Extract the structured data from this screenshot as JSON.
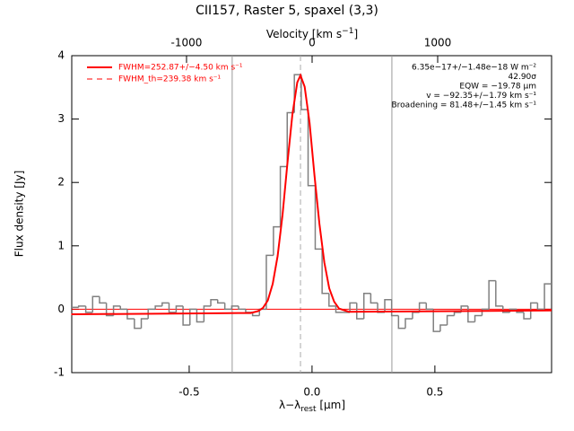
{
  "chart_data": {
    "type": "spectrum",
    "title": "CII157, Raster 5, spaxel (3,3)",
    "xlabel": [
      "λ−λ",
      "rest",
      " [μm]"
    ],
    "ylabel": "Flux density [Jy]",
    "x2label": [
      "Velocity [km s",
      "−1",
      "]"
    ],
    "xlim": [
      -0.978,
      0.975
    ],
    "ylim": [
      -1,
      4
    ],
    "x2lim": [
      -1914,
      1907
    ],
    "xticks": [
      -0.5,
      {
        "value": 0,
        "label": "0.0"
      },
      0.5
    ],
    "yticks": [
      -1,
      0,
      1,
      2,
      3,
      4
    ],
    "x2ticks": [
      -1000,
      0,
      1000
    ],
    "series": [
      {
        "type": "histogram",
        "color": "#808080",
        "bins": [
          -0.978,
          -0.95,
          -0.921,
          -0.893,
          -0.865,
          -0.837,
          -0.808,
          -0.78,
          -0.752,
          -0.723,
          -0.695,
          -0.667,
          -0.638,
          -0.61,
          -0.582,
          -0.553,
          -0.525,
          -0.497,
          -0.469,
          -0.44,
          -0.412,
          -0.384,
          -0.355,
          -0.327,
          -0.299,
          -0.27,
          -0.242,
          -0.214,
          -0.186,
          -0.157,
          -0.129,
          -0.101,
          -0.072,
          -0.044,
          -0.016,
          0.013,
          0.041,
          0.069,
          0.097,
          0.126,
          0.154,
          0.182,
          0.211,
          0.239,
          0.267,
          0.296,
          0.324,
          0.352,
          0.38,
          0.409,
          0.437,
          0.465,
          0.494,
          0.522,
          0.55,
          0.579,
          0.607,
          0.635,
          0.663,
          0.692,
          0.72,
          0.748,
          0.777,
          0.805,
          0.833,
          0.862,
          0.89,
          0.918,
          0.946,
          0.975
        ],
        "values": [
          0.03,
          0.05,
          -0.05,
          0.2,
          0.1,
          -0.1,
          0.05,
          0.0,
          -0.15,
          -0.3,
          -0.15,
          0.0,
          0.05,
          0.1,
          -0.05,
          0.05,
          -0.25,
          0.0,
          -0.2,
          0.05,
          0.15,
          0.1,
          0.0,
          0.05,
          0.0,
          -0.05,
          -0.1,
          0.0,
          0.85,
          1.3,
          2.25,
          3.1,
          3.7,
          3.15,
          1.95,
          0.95,
          0.25,
          0.05,
          -0.05,
          -0.05,
          0.1,
          -0.15,
          0.25,
          0.1,
          -0.05,
          0.15,
          -0.1,
          -0.3,
          -0.15,
          -0.05,
          0.1,
          0.0,
          -0.35,
          -0.25,
          -0.1,
          -0.05,
          0.05,
          -0.2,
          -0.1,
          0.0,
          0.45,
          0.05,
          -0.05,
          0.0,
          -0.05,
          -0.15,
          0.1,
          0.0,
          0.4
        ]
      },
      {
        "type": "line",
        "name": "FWHM=252.87+/−4.50 km s⁻¹",
        "color": "#ff0000",
        "x": [
          -0.98,
          -0.3,
          -0.25,
          -0.22,
          -0.2,
          -0.18,
          -0.16,
          -0.14,
          -0.12,
          -0.1,
          -0.08,
          -0.06,
          -0.047,
          -0.03,
          -0.01,
          0.01,
          0.03,
          0.05,
          0.07,
          0.09,
          0.11,
          0.15,
          0.975
        ],
        "values": [
          -0.08,
          -0.06,
          -0.06,
          -0.03,
          0.02,
          0.14,
          0.4,
          0.84,
          1.49,
          2.31,
          3.07,
          3.58,
          3.69,
          3.51,
          2.94,
          2.11,
          1.35,
          0.74,
          0.33,
          0.12,
          0.01,
          -0.04,
          -0.02
        ]
      }
    ],
    "legend_dashed": {
      "name": "FWHM_th=239.38 km s⁻¹",
      "color": "#ff0000"
    },
    "center_line": {
      "x": -0.047,
      "color": "#aaaaaa"
    },
    "window_lines": {
      "x": [
        -0.325,
        0.325
      ],
      "color": "#999999"
    },
    "zero_line": {
      "y": 0,
      "color": "#ff0000"
    },
    "annotations": [
      "6.35e−17+/−1.48e−18 W m⁻²",
      "42.90σ",
      "EQW = −19.78 μm",
      "v = −92.35+/−1.79 km s⁻¹",
      "Broadening = 81.48+/−1.45 km s⁻¹"
    ]
  }
}
